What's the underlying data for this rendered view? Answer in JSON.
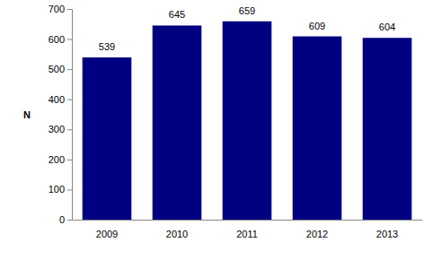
{
  "chart_data": {
    "type": "bar",
    "y_label": "N",
    "categories": [
      "2009",
      "2010",
      "2011",
      "2012",
      "2013"
    ],
    "values": [
      539,
      645,
      659,
      609,
      604
    ],
    "color": "#000080",
    "ylim": [
      0,
      700
    ],
    "yticks": [
      0,
      100,
      200,
      300,
      400,
      500,
      600,
      700
    ],
    "grid": false,
    "data_labels": true
  }
}
